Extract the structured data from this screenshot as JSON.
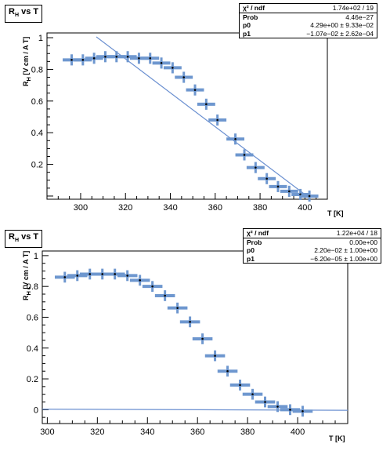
{
  "chart_data": [
    {
      "type": "scatter",
      "title": "R_H vs T",
      "xlabel": "T [K]",
      "ylabel": "R_H [V cm / A T]",
      "xlim": [
        285,
        410
      ],
      "ylim": [
        -0.02,
        1.03
      ],
      "x_ticks": [
        300,
        320,
        340,
        360,
        380,
        400
      ],
      "y_ticks": [
        0.2,
        0.4,
        0.6,
        0.8,
        1
      ],
      "grid": false,
      "stats": {
        "chi2_ndf": "1.74e+02 / 19",
        "prob": "4.46e−27",
        "p0": "4.29e+00 ± 9.33e−02",
        "p1": "−1.07e−02 ± 2.62e−04"
      },
      "points": [
        {
          "x": 296,
          "y": 0.86
        },
        {
          "x": 301,
          "y": 0.86
        },
        {
          "x": 306,
          "y": 0.87
        },
        {
          "x": 311,
          "y": 0.88
        },
        {
          "x": 316,
          "y": 0.88
        },
        {
          "x": 321,
          "y": 0.88
        },
        {
          "x": 326,
          "y": 0.87
        },
        {
          "x": 331,
          "y": 0.87
        },
        {
          "x": 336,
          "y": 0.84
        },
        {
          "x": 341,
          "y": 0.81
        },
        {
          "x": 346,
          "y": 0.75
        },
        {
          "x": 351,
          "y": 0.67
        },
        {
          "x": 356,
          "y": 0.58
        },
        {
          "x": 361,
          "y": 0.48
        },
        {
          "x": 369,
          "y": 0.36
        },
        {
          "x": 373,
          "y": 0.26
        },
        {
          "x": 378,
          "y": 0.18
        },
        {
          "x": 383,
          "y": 0.11
        },
        {
          "x": 388,
          "y": 0.06
        },
        {
          "x": 393,
          "y": 0.03
        },
        {
          "x": 398,
          "y": 0.01
        },
        {
          "x": 402,
          "y": 0.0
        }
      ],
      "x_err": 4,
      "y_err": 0.035,
      "fit_line": {
        "p0": 4.29,
        "p1": -0.0107,
        "x_range": [
          307,
          402
        ]
      }
    },
    {
      "type": "scatter",
      "title": "R_H vs T",
      "xlabel": "T [K]",
      "ylabel": "R_H [V cm / A T]",
      "xlim": [
        298,
        420
      ],
      "ylim": [
        -0.09,
        1.03
      ],
      "x_ticks": [
        300,
        320,
        340,
        360,
        380,
        400
      ],
      "y_ticks": [
        0,
        0.2,
        0.4,
        0.6,
        0.8,
        1
      ],
      "grid": false,
      "stats": {
        "chi2_ndf": "1.22e+04 / 18",
        "prob": "0.00e+00",
        "p0": "2.20e−02 ± 1.00e+00",
        "p1": "−6.20e−05 ± 1.00e+00"
      },
      "points": [
        {
          "x": 307,
          "y": 0.86
        },
        {
          "x": 312,
          "y": 0.87
        },
        {
          "x": 317,
          "y": 0.88
        },
        {
          "x": 322,
          "y": 0.88
        },
        {
          "x": 327,
          "y": 0.88
        },
        {
          "x": 332,
          "y": 0.87
        },
        {
          "x": 337,
          "y": 0.84
        },
        {
          "x": 342,
          "y": 0.8
        },
        {
          "x": 347,
          "y": 0.74
        },
        {
          "x": 352,
          "y": 0.66
        },
        {
          "x": 357,
          "y": 0.57
        },
        {
          "x": 362,
          "y": 0.46
        },
        {
          "x": 367,
          "y": 0.35
        },
        {
          "x": 372,
          "y": 0.25
        },
        {
          "x": 377,
          "y": 0.16
        },
        {
          "x": 382,
          "y": 0.1
        },
        {
          "x": 387,
          "y": 0.05
        },
        {
          "x": 392,
          "y": 0.02
        },
        {
          "x": 397,
          "y": 0.0
        },
        {
          "x": 402,
          "y": -0.01
        }
      ],
      "x_err": 4,
      "y_err": 0.035,
      "fit_line": {
        "p0": 0.022,
        "p1": -6.2e-05,
        "x_range": [
          298,
          420
        ]
      }
    }
  ],
  "colors": {
    "marker": "#6e97cf",
    "fit": "#6a8fd0",
    "axis": "#000000"
  }
}
